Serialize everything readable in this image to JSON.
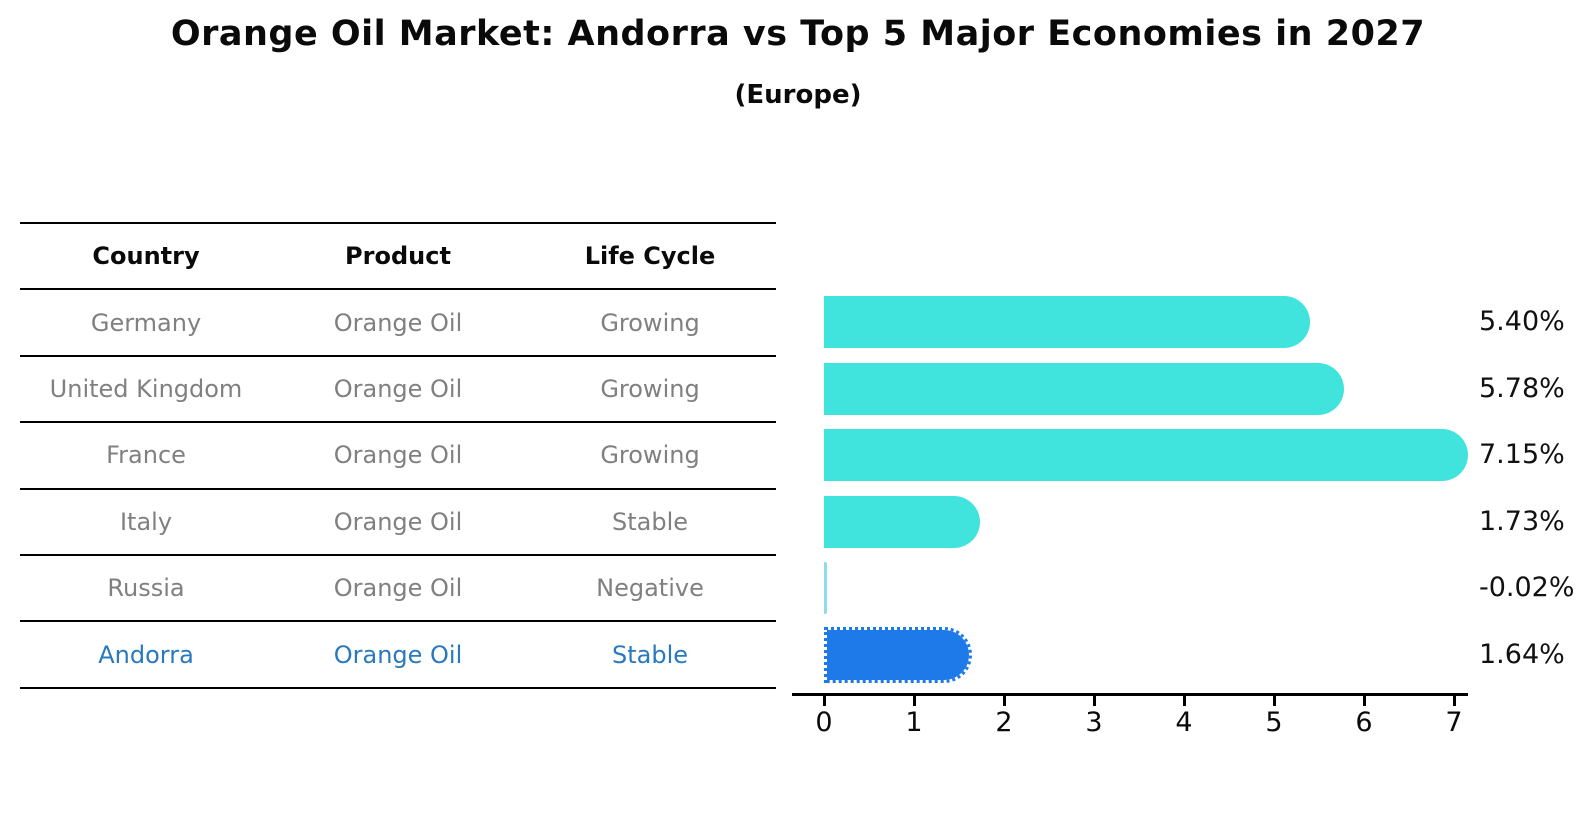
{
  "title": "Orange Oil Market: Andorra vs Top 5 Major Economies in 2027",
  "subtitle": "(Europe)",
  "table": {
    "headers": [
      "Country",
      "Product",
      "Life Cycle"
    ],
    "rows": [
      {
        "country": "Germany",
        "product": "Orange Oil",
        "life_cycle": "Growing",
        "highlight": false
      },
      {
        "country": "United Kingdom",
        "product": "Orange Oil",
        "life_cycle": "Growing",
        "highlight": false
      },
      {
        "country": "France",
        "product": "Orange Oil",
        "life_cycle": "Growing",
        "highlight": false
      },
      {
        "country": "Italy",
        "product": "Orange Oil",
        "life_cycle": "Stable",
        "highlight": false
      },
      {
        "country": "Russia",
        "product": "Orange Oil",
        "life_cycle": "Negative",
        "highlight": false
      },
      {
        "country": "Andorra",
        "product": "Orange Oil",
        "life_cycle": "Stable",
        "highlight": true
      }
    ]
  },
  "chart_data": {
    "type": "bar",
    "orientation": "horizontal",
    "title": "Orange Oil Market: Andorra vs Top 5 Major Economies in 2027 (Europe)",
    "categories": [
      "Germany",
      "United Kingdom",
      "France",
      "Italy",
      "Russia",
      "Andorra"
    ],
    "values": [
      5.4,
      5.78,
      7.15,
      1.73,
      -0.02,
      1.64
    ],
    "value_labels": [
      "5.40%",
      "5.78%",
      "7.15%",
      "1.73%",
      "-0.02%",
      "1.64%"
    ],
    "highlight_index": 5,
    "xticks": [
      "0",
      "1",
      "2",
      "3",
      "4",
      "5",
      "6",
      "7"
    ],
    "xlim": [
      -0.36,
      7.5
    ],
    "grid": false,
    "legend": null,
    "colors": {
      "bar": "#40E4DC",
      "near_zero_bar": "#8EDBEA",
      "highlight_bar": "#1E7AE8",
      "highlight_text": "#2879BE",
      "row_text": "#808080",
      "label_text": "#111111",
      "axis": "#000000"
    }
  }
}
